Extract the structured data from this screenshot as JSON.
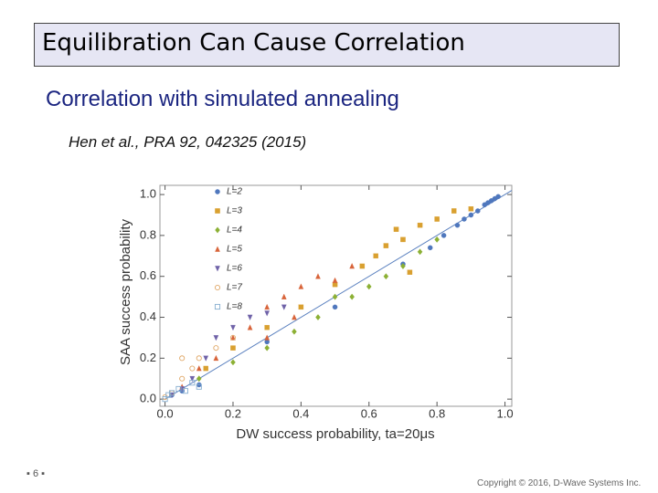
{
  "slide": {
    "title": "Equilibration Can Cause Correlation",
    "subtitle": "Correlation with simulated annealing",
    "citation": "Hen et al., PRA 92, 042325 (2015)",
    "page_number": "6",
    "copyright": "Copyright © 2016, D-Wave Systems Inc."
  },
  "chart_data": {
    "type": "scatter",
    "xlabel": "DW success probability, ta=20μs",
    "ylabel": "SAA success probability",
    "xlim": [
      -0.015,
      1.02
    ],
    "ylim": [
      -0.035,
      1.045
    ],
    "xticks": [
      {
        "value": 0,
        "label": "0.0"
      },
      0.2,
      0.4,
      0.6,
      0.8,
      {
        "value": 1,
        "label": "1.0"
      }
    ],
    "yticks": [
      {
        "value": 0,
        "label": "0.0"
      },
      0.2,
      0.4,
      0.6,
      0.8,
      {
        "value": 1,
        "label": "1.0"
      }
    ],
    "legend": "top-left",
    "series": [
      {
        "name": "L=2",
        "color": "#4f77bd",
        "marker": "circle",
        "x": [
          0.02,
          0.05,
          0.1,
          0.3,
          0.5,
          0.7,
          0.78,
          0.82,
          0.86,
          0.88,
          0.9,
          0.92,
          0.94,
          0.95,
          0.96,
          0.97,
          0.98
        ],
        "values": [
          0.02,
          0.04,
          0.07,
          0.28,
          0.45,
          0.66,
          0.74,
          0.8,
          0.85,
          0.88,
          0.9,
          0.92,
          0.95,
          0.96,
          0.97,
          0.98,
          0.99
        ]
      },
      {
        "name": "L=3",
        "color": "#d9a030",
        "marker": "square",
        "x": [
          0.12,
          0.2,
          0.3,
          0.4,
          0.5,
          0.58,
          0.65,
          0.7,
          0.75,
          0.8,
          0.85,
          0.9,
          0.72,
          0.68,
          0.62
        ],
        "values": [
          0.15,
          0.25,
          0.35,
          0.45,
          0.56,
          0.65,
          0.75,
          0.78,
          0.85,
          0.88,
          0.92,
          0.93,
          0.62,
          0.83,
          0.7
        ]
      },
      {
        "name": "L=4",
        "color": "#8cb034",
        "marker": "diamond",
        "x": [
          0.1,
          0.2,
          0.3,
          0.38,
          0.45,
          0.5,
          0.55,
          0.6,
          0.65,
          0.7,
          0.75,
          0.8
        ],
        "values": [
          0.1,
          0.18,
          0.25,
          0.33,
          0.4,
          0.5,
          0.5,
          0.55,
          0.6,
          0.65,
          0.72,
          0.78
        ]
      },
      {
        "name": "L=5",
        "color": "#d8643a",
        "marker": "triangle",
        "x": [
          0.05,
          0.1,
          0.15,
          0.2,
          0.25,
          0.3,
          0.35,
          0.4,
          0.45,
          0.5,
          0.55,
          0.3,
          0.38
        ],
        "values": [
          0.06,
          0.15,
          0.2,
          0.3,
          0.35,
          0.45,
          0.5,
          0.55,
          0.6,
          0.58,
          0.65,
          0.3,
          0.4
        ]
      },
      {
        "name": "L=6",
        "color": "#6f62a8",
        "marker": "down-triangle",
        "x": [
          0.02,
          0.05,
          0.08,
          0.12,
          0.15,
          0.2,
          0.25,
          0.3,
          0.35
        ],
        "values": [
          0.02,
          0.05,
          0.1,
          0.2,
          0.3,
          0.35,
          0.4,
          0.42,
          0.45
        ]
      },
      {
        "name": "L=7",
        "color": "#e0a868",
        "marker": "open-circle",
        "x": [
          0.0,
          0.02,
          0.05,
          0.08,
          0.1,
          0.15,
          0.2,
          0.05
        ],
        "values": [
          0.01,
          0.03,
          0.1,
          0.15,
          0.2,
          0.25,
          0.3,
          0.2
        ]
      },
      {
        "name": "L=8",
        "color": "#86aed0",
        "marker": "open-square",
        "x": [
          0.0,
          0.01,
          0.02,
          0.04,
          0.06,
          0.08,
          0.1
        ],
        "values": [
          0.0,
          0.02,
          0.03,
          0.05,
          0.04,
          0.08,
          0.06
        ]
      }
    ]
  }
}
